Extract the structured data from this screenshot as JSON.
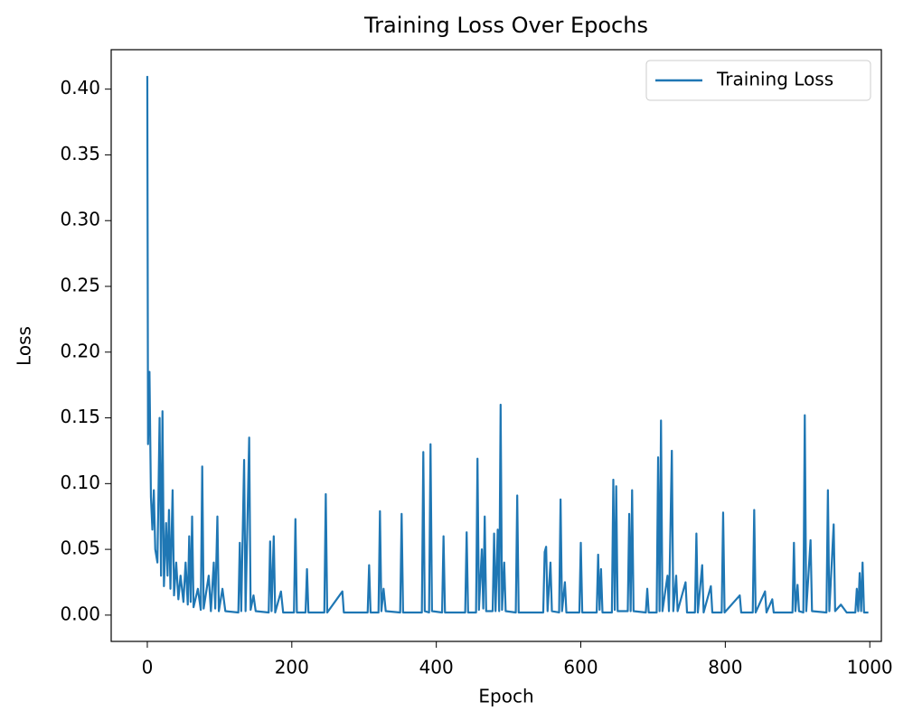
{
  "chart_data": {
    "type": "line",
    "title": "Training Loss Over Epochs",
    "xlabel": "Epoch",
    "ylabel": "Loss",
    "x": [
      0,
      1,
      3,
      5,
      7,
      9,
      11,
      14,
      17,
      19,
      21,
      23,
      26,
      28,
      30,
      32,
      35,
      37,
      40,
      43,
      46,
      50,
      53,
      56,
      58,
      60,
      62,
      64,
      70,
      74,
      76,
      78,
      85,
      88,
      92,
      94,
      97,
      99,
      104,
      108,
      126,
      128,
      130,
      134,
      136,
      141,
      143,
      147,
      150,
      168,
      170,
      172,
      175,
      177,
      185,
      188,
      203,
      205,
      207,
      219,
      221,
      223,
      245,
      247,
      249,
      270,
      272,
      305,
      307,
      309,
      320,
      322,
      324,
      327,
      330,
      350,
      352,
      354,
      380,
      382,
      384,
      390,
      392,
      394,
      408,
      410,
      412,
      440,
      442,
      444,
      455,
      457,
      459,
      463,
      465,
      467,
      469,
      478,
      480,
      482,
      485,
      487,
      489,
      491,
      494,
      496,
      510,
      512,
      514,
      548,
      550,
      552,
      554,
      558,
      560,
      570,
      572,
      574,
      578,
      580,
      598,
      600,
      602,
      622,
      624,
      626,
      628,
      630,
      643,
      645,
      647,
      649,
      651,
      665,
      667,
      669,
      671,
      673,
      690,
      692,
      694,
      705,
      707,
      709,
      711,
      713,
      720,
      722,
      726,
      728,
      732,
      734,
      745,
      747,
      758,
      760,
      762,
      768,
      770,
      780,
      782,
      795,
      797,
      799,
      820,
      822,
      838,
      840,
      842,
      855,
      857,
      865,
      867,
      893,
      895,
      897,
      900,
      902,
      908,
      910,
      912,
      918,
      920,
      940,
      942,
      944,
      950,
      952,
      960,
      968,
      980,
      982,
      984,
      986,
      988,
      990,
      992,
      998
    ],
    "series": [
      {
        "name": "Training Loss",
        "color": "#1f77b4",
        "values": [
          0.41,
          0.13,
          0.185,
          0.09,
          0.065,
          0.095,
          0.05,
          0.04,
          0.15,
          0.03,
          0.155,
          0.022,
          0.07,
          0.03,
          0.08,
          0.02,
          0.095,
          0.015,
          0.04,
          0.012,
          0.03,
          0.01,
          0.04,
          0.008,
          0.06,
          0.01,
          0.075,
          0.006,
          0.02,
          0.004,
          0.113,
          0.005,
          0.03,
          0.003,
          0.04,
          0.005,
          0.075,
          0.003,
          0.02,
          0.003,
          0.002,
          0.055,
          0.003,
          0.118,
          0.003,
          0.135,
          0.004,
          0.015,
          0.003,
          0.002,
          0.056,
          0.003,
          0.06,
          0.002,
          0.018,
          0.002,
          0.002,
          0.073,
          0.002,
          0.002,
          0.035,
          0.002,
          0.002,
          0.092,
          0.002,
          0.018,
          0.002,
          0.002,
          0.038,
          0.002,
          0.002,
          0.079,
          0.003,
          0.02,
          0.003,
          0.002,
          0.077,
          0.002,
          0.002,
          0.124,
          0.003,
          0.002,
          0.13,
          0.003,
          0.002,
          0.06,
          0.002,
          0.002,
          0.063,
          0.002,
          0.002,
          0.119,
          0.004,
          0.05,
          0.005,
          0.075,
          0.003,
          0.003,
          0.062,
          0.003,
          0.065,
          0.003,
          0.16,
          0.004,
          0.04,
          0.003,
          0.002,
          0.091,
          0.002,
          0.002,
          0.048,
          0.052,
          0.003,
          0.04,
          0.003,
          0.002,
          0.088,
          0.003,
          0.025,
          0.002,
          0.002,
          0.055,
          0.002,
          0.002,
          0.046,
          0.004,
          0.035,
          0.002,
          0.002,
          0.103,
          0.004,
          0.098,
          0.003,
          0.003,
          0.077,
          0.003,
          0.095,
          0.003,
          0.002,
          0.02,
          0.002,
          0.002,
          0.12,
          0.003,
          0.148,
          0.003,
          0.03,
          0.003,
          0.125,
          0.003,
          0.03,
          0.003,
          0.025,
          0.002,
          0.002,
          0.062,
          0.002,
          0.038,
          0.002,
          0.022,
          0.002,
          0.002,
          0.078,
          0.002,
          0.015,
          0.002,
          0.002,
          0.08,
          0.002,
          0.018,
          0.002,
          0.012,
          0.002,
          0.002,
          0.055,
          0.003,
          0.023,
          0.003,
          0.002,
          0.152,
          0.003,
          0.057,
          0.003,
          0.002,
          0.095,
          0.003,
          0.069,
          0.003,
          0.008,
          0.002,
          0.002,
          0.02,
          0.003,
          0.032,
          0.003,
          0.04,
          0.002,
          0.002
        ]
      }
    ],
    "xlim": [
      -50,
      1016
    ],
    "xticks": [
      0,
      200,
      400,
      600,
      800,
      1000
    ],
    "ylim": [
      -0.02,
      0.43
    ],
    "yticks": [
      {
        "value": 0,
        "label": "0.00"
      },
      0.05,
      {
        "value": 0.1,
        "label": "0.10"
      },
      0.15,
      {
        "value": 0.2,
        "label": "0.20"
      },
      0.25,
      {
        "value": 0.3,
        "label": "0.30"
      },
      0.35,
      {
        "value": 0.4,
        "label": "0.40"
      }
    ],
    "legend": "upper right"
  }
}
